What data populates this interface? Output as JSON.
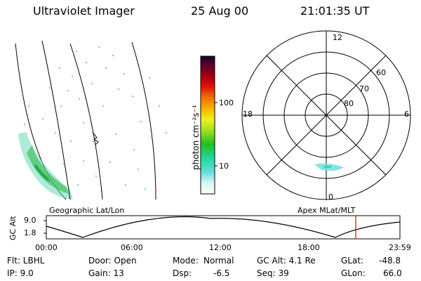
{
  "header": {
    "instrument": "Ultraviolet Imager",
    "date": "25 Aug 00",
    "time": "21:01:35 UT"
  },
  "colorbar": {
    "unit_label": "photon cm⁻²s⁻¹",
    "tick_labels": [
      "100",
      "10"
    ]
  },
  "polar_plot": {
    "mlt_labels": [
      "12",
      "18",
      "6",
      "0"
    ],
    "lat_labels": [
      "60",
      "70",
      "80"
    ]
  },
  "panels": {
    "left_caption": "Geographic Lat/Lon",
    "right_caption": "Apex MLat/MLT"
  },
  "timeline": {
    "ylabel": "GC Alt",
    "yticks": [
      "9.0",
      "1.8"
    ],
    "xticks": [
      "00:00",
      "06:00",
      "12:00",
      "18:00",
      "23:59"
    ],
    "current_marker_color": "#e00000"
  },
  "info": {
    "row1": {
      "filter": "Flt: LBHL",
      "door": "Door: Open",
      "mode_label": "Mode:",
      "mode_value": "Normal",
      "gc_alt": "GC Alt: 4.1 Re",
      "glat_label": "GLat:",
      "glat_value": "-48.8"
    },
    "row2": {
      "ip": "IP: 9.0",
      "gain": "Gain: 13",
      "dsp_label": "Dsp:",
      "dsp_value": "-6.5",
      "seq": "Seq: 39",
      "glon_label": "GLon:",
      "glon_value": "66.0"
    }
  }
}
